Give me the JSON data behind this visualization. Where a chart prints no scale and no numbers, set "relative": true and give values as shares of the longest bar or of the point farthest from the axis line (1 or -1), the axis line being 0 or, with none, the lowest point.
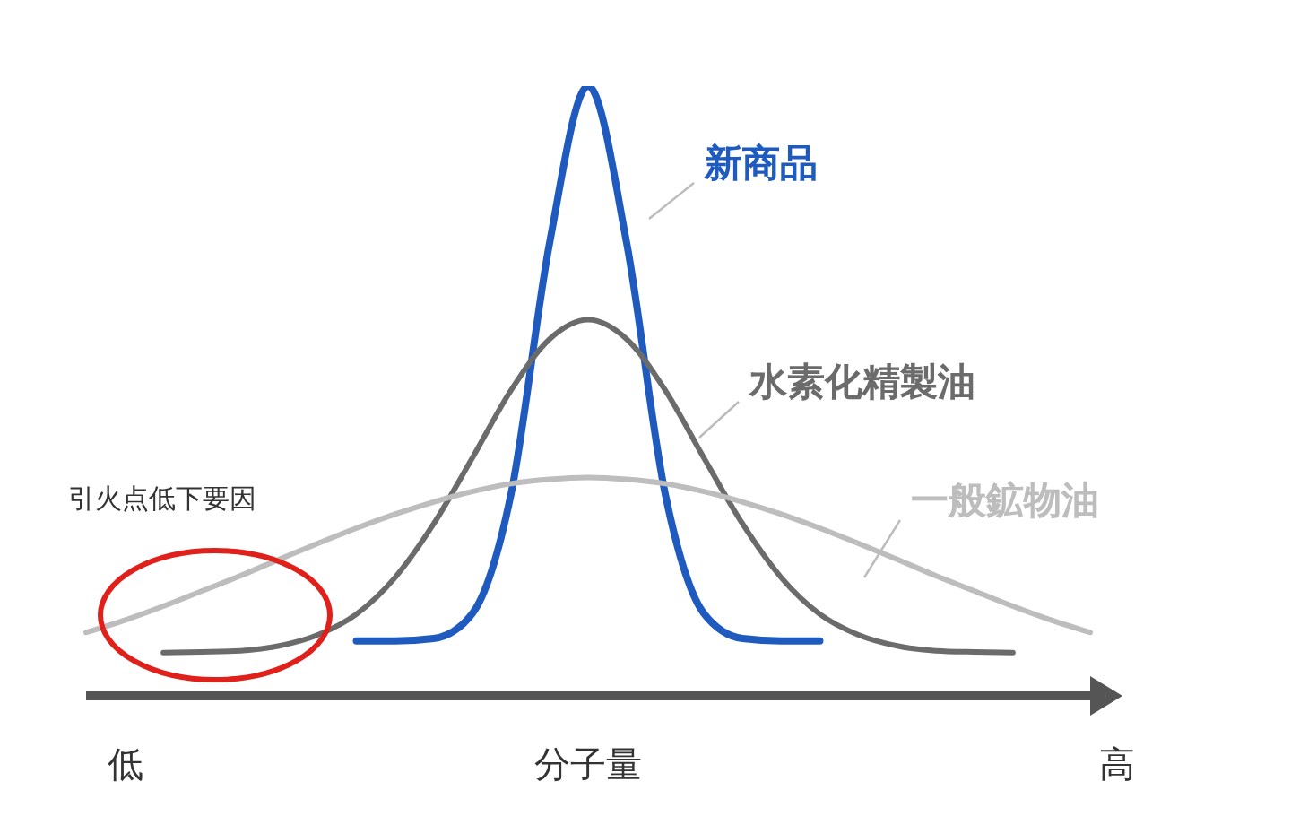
{
  "chart_data": {
    "type": "line",
    "relative": true,
    "xlabel": "分子量",
    "marker": "none",
    "line_style": "solid",
    "categories": [
      null,
      null,
      null,
      null,
      null,
      null,
      null,
      null,
      null,
      null,
      null,
      null,
      null,
      null,
      null,
      null,
      null,
      null,
      null,
      null,
      null,
      null,
      null,
      null,
      null,
      null,
      null
    ],
    "annotations": [
      "引火点低下要因",
      "低",
      "高"
    ],
    "series": [
      {
        "name": "新商品",
        "color": "#1f5bbf",
        "values": [
          null,
          null,
          null,
          null,
          null,
          null,
          null,
          0.09,
          0.09,
          0.094,
          0.135,
          0.33,
          0.742,
          1,
          0.742,
          0.33,
          0.135,
          0.094,
          0.09,
          0.09,
          null,
          null,
          null,
          null,
          null,
          null,
          null
        ]
      },
      {
        "name": "水素化精製油",
        "color": "#6b6b6b",
        "values": [
          null,
          null,
          0.071,
          0.072,
          0.074,
          0.082,
          0.1,
          0.134,
          0.194,
          0.282,
          0.39,
          0.501,
          0.585,
          0.617,
          0.585,
          0.501,
          0.39,
          0.282,
          0.194,
          0.134,
          0.1,
          0.082,
          0.074,
          0.072,
          0.071,
          null,
          null
        ]
      },
      {
        "name": "一般鉱物油",
        "color": "#bdbdbd",
        "values": [
          0.104,
          0.124,
          0.147,
          0.172,
          0.197,
          0.224,
          0.25,
          0.275,
          0.298,
          0.318,
          0.335,
          0.348,
          0.355,
          0.358,
          0.355,
          0.348,
          0.335,
          0.318,
          0.298,
          0.275,
          0.25,
          0.224,
          0.197,
          0.172,
          0.147,
          0.124,
          0.104
        ]
      }
    ]
  }
}
